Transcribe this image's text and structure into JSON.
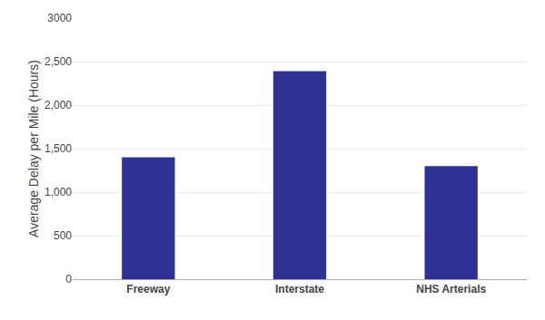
{
  "chart_data": {
    "type": "bar",
    "categories": [
      "Freeway",
      "Interstate",
      "NHS Arterials"
    ],
    "values": [
      1400,
      2390,
      1300
    ],
    "color": "#2E3191",
    "ylabel": "Average Delay per Mile (Hours)",
    "ylim": [
      0,
      3000
    ],
    "yticks": [
      0,
      500,
      {
        "value": 1000,
        "label": "1,000"
      },
      {
        "value": 1500,
        "label": "1,500"
      },
      {
        "value": 2000,
        "label": "2,000"
      },
      {
        "value": 2500,
        "label": "2,500"
      },
      3000
    ],
    "grid": true
  }
}
